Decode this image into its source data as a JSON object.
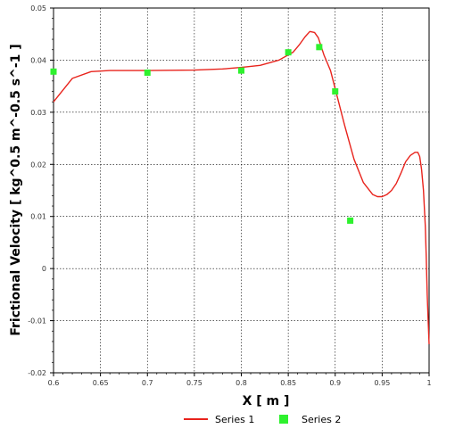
{
  "chart_data": {
    "type": "line",
    "xlabel": "X [ m ]",
    "ylabel": "Frictional Velocity [ kg^0.5 m^-0.5 s^-1 ]",
    "xlim": [
      0.6,
      1.0
    ],
    "ylim": [
      -0.02,
      0.05
    ],
    "x_ticks": [
      "0.6",
      "0.65",
      "0.7",
      "0.75",
      "0.8",
      "0.85",
      "0.9",
      "0.95",
      "1"
    ],
    "x_tick_values": [
      0.6,
      0.65,
      0.7,
      0.75,
      0.8,
      0.85,
      0.9,
      0.95,
      1.0
    ],
    "y_ticks": [
      "-0.02",
      "-0.01",
      "0",
      "0.01",
      "0.02",
      "0.03",
      "0.04",
      "0.05"
    ],
    "y_tick_values": [
      -0.02,
      -0.01,
      0,
      0.01,
      0.02,
      0.03,
      0.04,
      0.05
    ],
    "grid": true,
    "legend_position": "bottom-center",
    "series": [
      {
        "name": "Series 1",
        "kind": "line",
        "color": "#e8231c",
        "x": [
          0.6,
          0.62,
          0.64,
          0.66,
          0.7,
          0.75,
          0.78,
          0.8,
          0.82,
          0.84,
          0.855,
          0.862,
          0.868,
          0.873,
          0.878,
          0.882,
          0.888,
          0.895,
          0.9,
          0.91,
          0.92,
          0.93,
          0.94,
          0.945,
          0.95,
          0.955,
          0.96,
          0.965,
          0.97,
          0.975,
          0.98,
          0.985,
          0.988,
          0.99,
          0.992,
          0.994,
          0.996,
          0.997,
          0.998,
          0.999,
          1.0
        ],
        "y": [
          0.032,
          0.0365,
          0.0378,
          0.038,
          0.038,
          0.0381,
          0.0383,
          0.0386,
          0.039,
          0.04,
          0.0415,
          0.043,
          0.0445,
          0.0455,
          0.0453,
          0.0443,
          0.041,
          0.038,
          0.0345,
          0.0275,
          0.021,
          0.0165,
          0.0142,
          0.0138,
          0.0138,
          0.0142,
          0.015,
          0.0163,
          0.0183,
          0.0205,
          0.0217,
          0.0223,
          0.0223,
          0.0215,
          0.019,
          0.015,
          0.008,
          0.002,
          -0.005,
          -0.01,
          -0.0145
        ]
      },
      {
        "name": "Series 2",
        "kind": "scatter",
        "color": "#2ef12e",
        "x": [
          0.6,
          0.7,
          0.8,
          0.85,
          0.883,
          0.9,
          0.916
        ],
        "y": [
          0.0378,
          0.0376,
          0.038,
          0.0415,
          0.0425,
          0.034,
          0.0092
        ]
      }
    ]
  }
}
